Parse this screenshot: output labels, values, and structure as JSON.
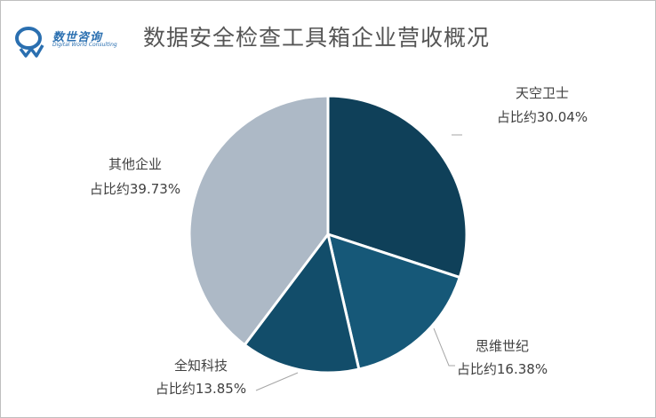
{
  "header": {
    "title": "数据安全检查工具箱企业营收概况",
    "logo_cn": "数世咨询",
    "logo_en": "Digital World Consulting"
  },
  "chart_data": {
    "type": "pie",
    "title": "数据安全检查工具箱企业营收概况",
    "start_angle_deg": 0,
    "direction": "clockwise",
    "slices": [
      {
        "name": "天空卫士",
        "label": "占比约30.04%",
        "value": 30.04,
        "color": "#0f4059"
      },
      {
        "name": "思维世纪",
        "label": "占比约16.38%",
        "value": 16.38,
        "color": "#165878"
      },
      {
        "name": "全知科技",
        "label": "占比约13.85%",
        "value": 13.85,
        "color": "#124d6a"
      },
      {
        "name": "其他企业",
        "label": "占比约39.73%",
        "value": 39.73,
        "color": "#adb9c6"
      }
    ]
  }
}
